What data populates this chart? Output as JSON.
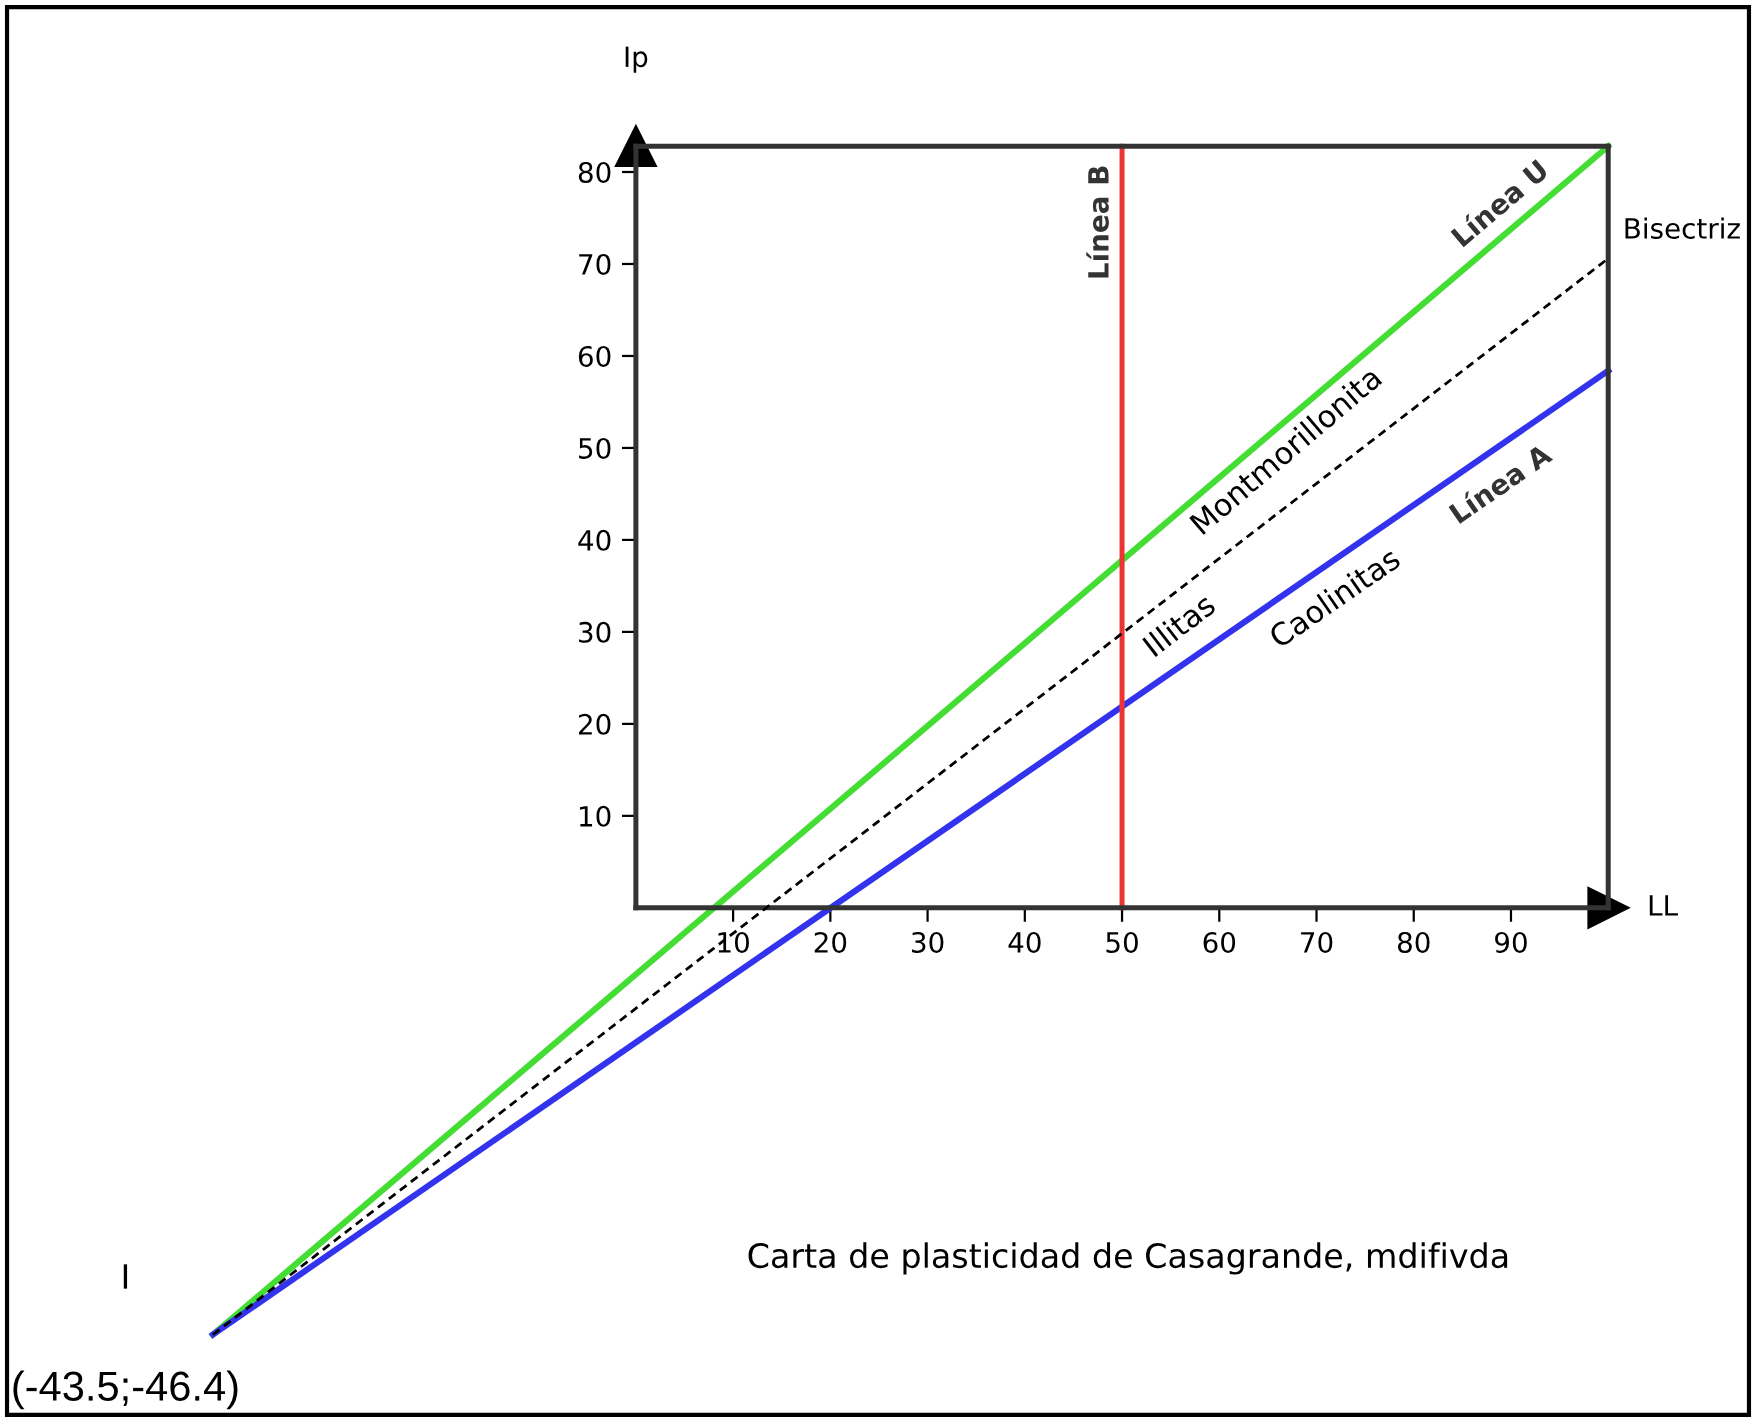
{
  "chart_data": {
    "type": "line",
    "xlabel": "LL",
    "ylabel": "Ip",
    "x": [
      -43.5,
      100
    ],
    "series": [
      {
        "name": "Línea U",
        "color": "#44dd33",
        "values": [
          -46.4,
          82.8
        ],
        "line_style": "solid"
      },
      {
        "name": "Bisectriz",
        "color": "#000000",
        "values": [
          -46.4,
          70.6
        ],
        "line_style": "dashed"
      },
      {
        "name": "Línea A",
        "color": "#3333ee",
        "values": [
          -46.4,
          58.4
        ],
        "line_style": "solid"
      }
    ],
    "xlim": [
      -65.4,
      115.2
    ],
    "ylim": [
      -55.9,
      98.7
    ],
    "xticks": [
      10,
      20,
      30,
      40,
      50,
      60,
      70,
      80,
      90
    ],
    "yticks": [
      10,
      20,
      30,
      40,
      50,
      60,
      70,
      80
    ],
    "ref_lines": [
      {
        "axis": "x",
        "value": 50,
        "label": "Línea B",
        "color": "#ee3333"
      }
    ],
    "annotations": [
      "Montmorillonita",
      "Illitas",
      "Caolinitas",
      {
        "text": "I",
        "x": -43.5,
        "y": -46.4
      },
      {
        "text": "(-43.5;-46.4)",
        "x": -43.5,
        "y": -46.4
      },
      "Carta de plasticidad de Casagrande, mdifivda"
    ],
    "grid": false,
    "legend": false,
    "marker": "none"
  }
}
